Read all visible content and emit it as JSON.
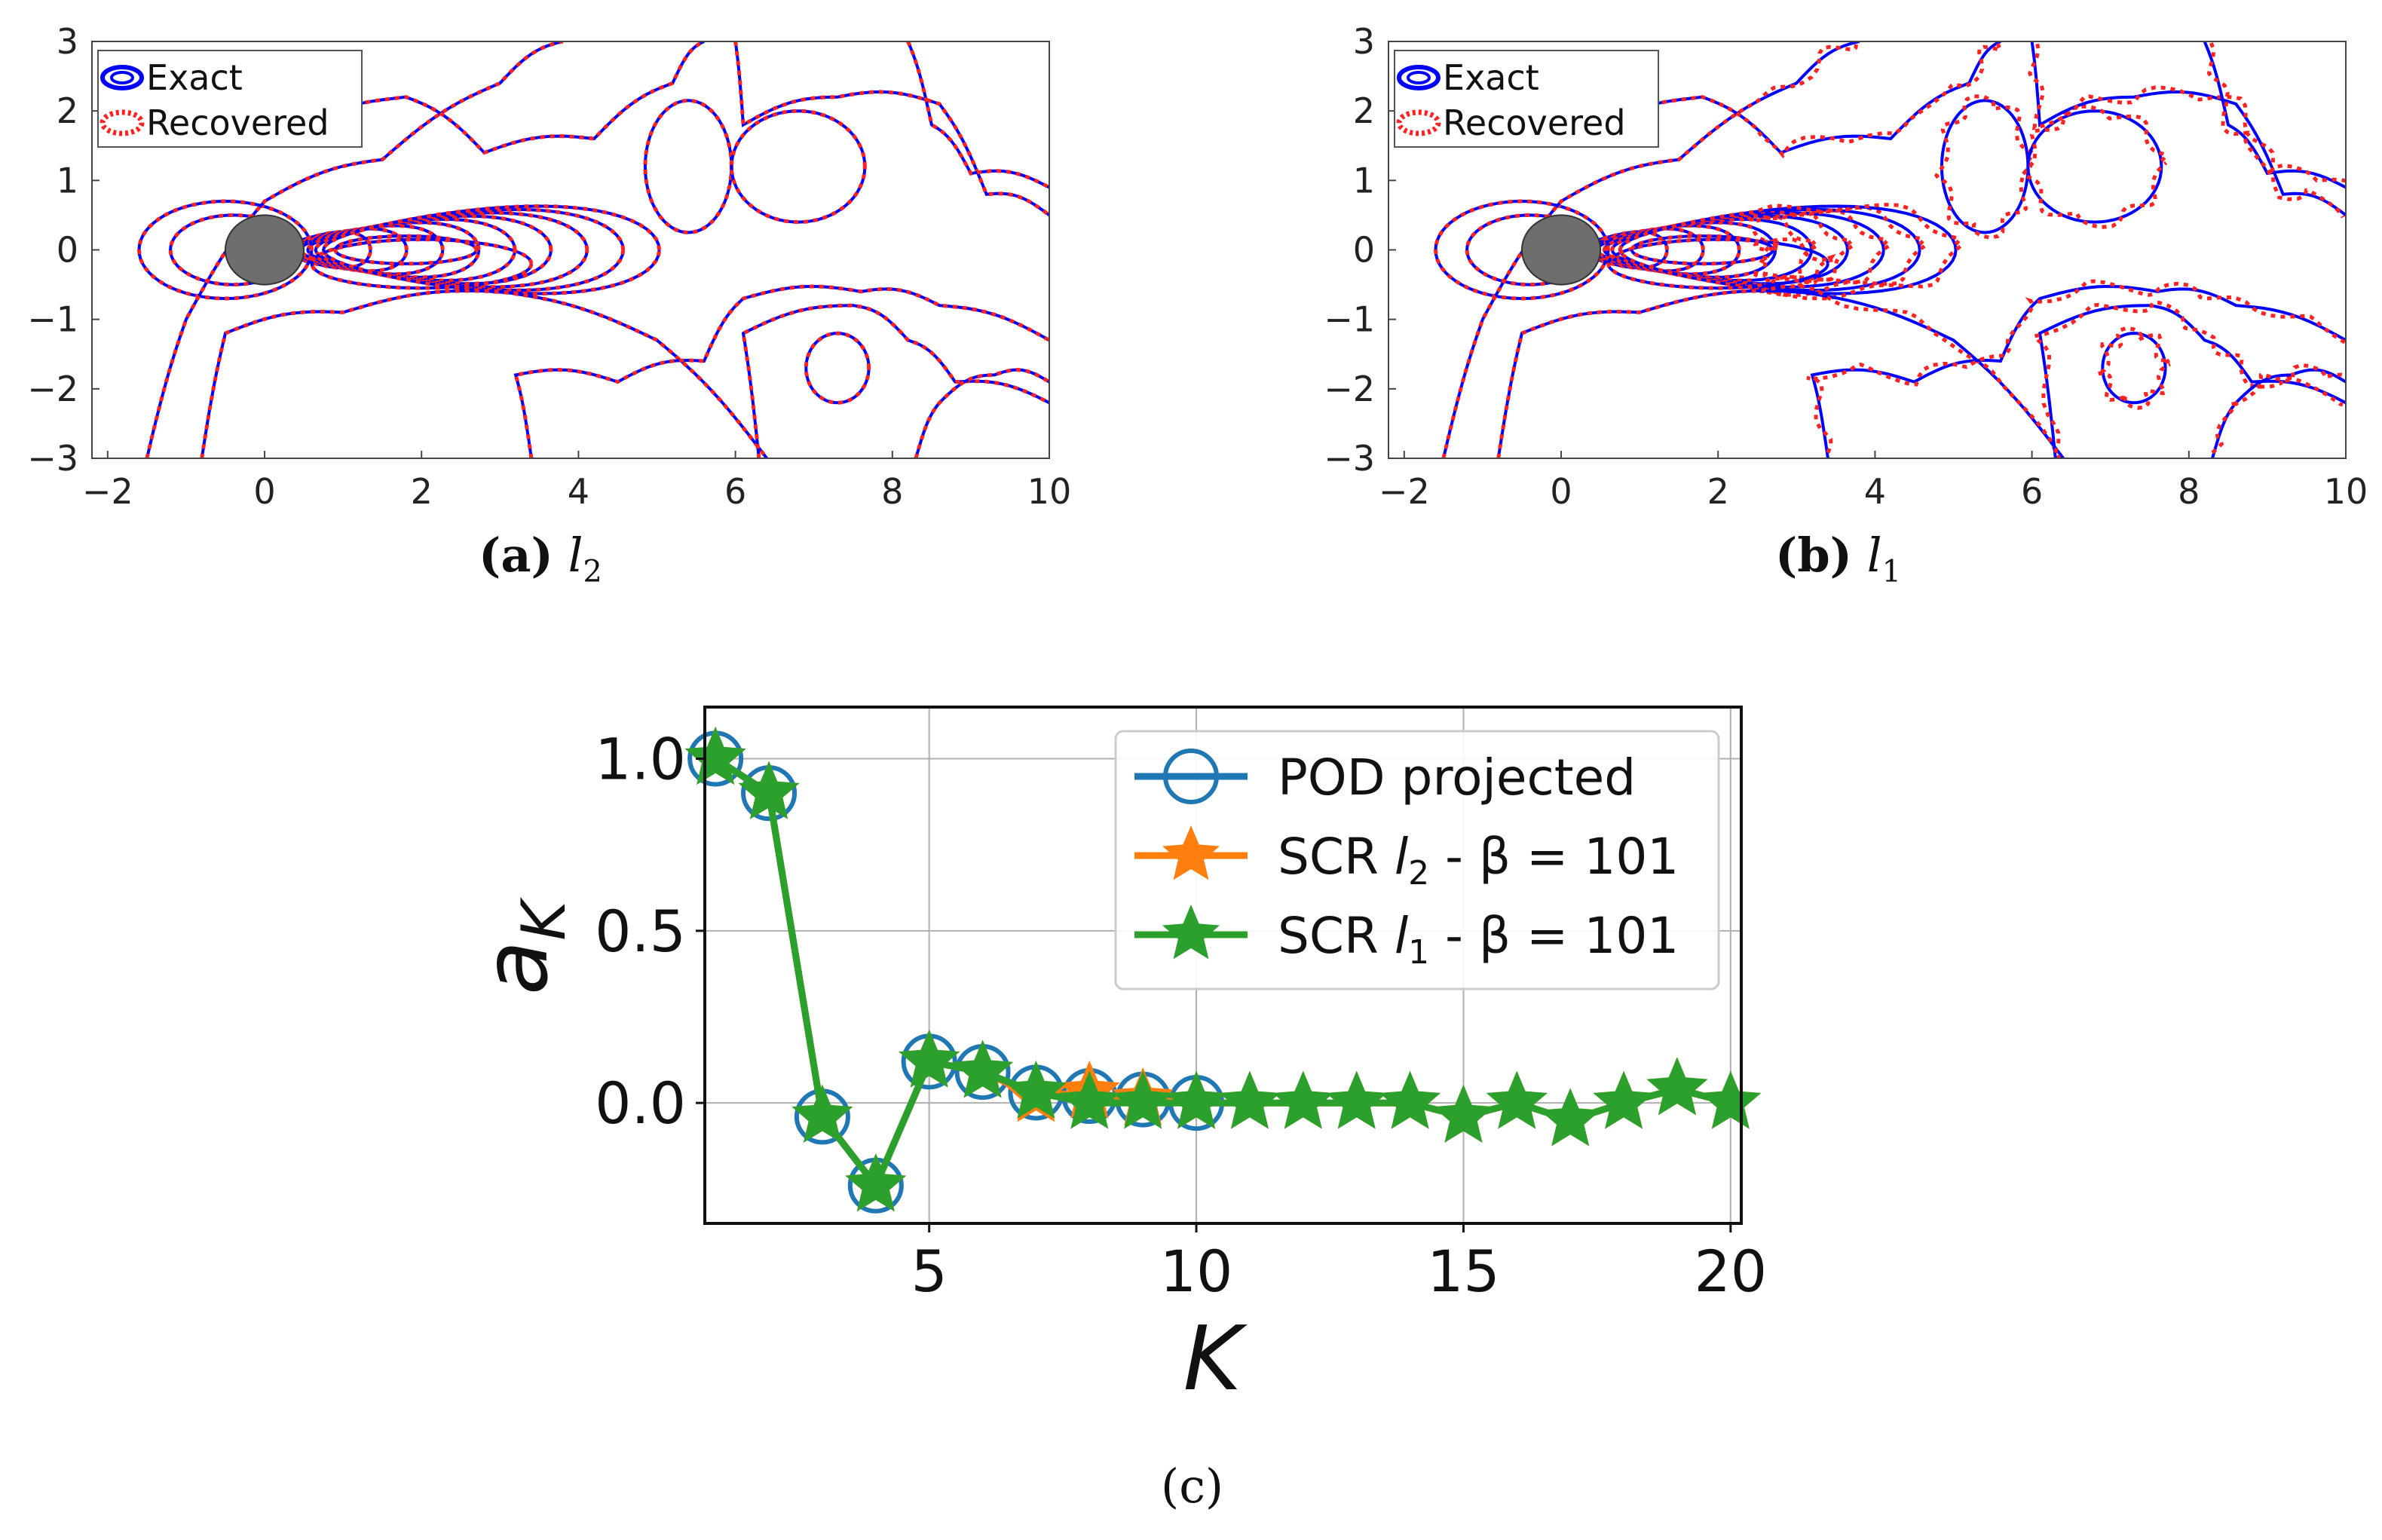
{
  "chart_data": [
    {
      "type": "contour",
      "panel_label": "(a)",
      "caption_symbol": "l",
      "caption_subscript": "2",
      "x_ticks": [
        -2,
        0,
        2,
        4,
        6,
        8,
        10
      ],
      "y_ticks": [
        3,
        2,
        1,
        0,
        -1,
        -2,
        -3
      ],
      "xlim": [
        -2.2,
        10
      ],
      "ylim": [
        -3,
        3
      ],
      "legend": [
        {
          "label": "Exact",
          "color": "#0000ff",
          "style": "solid"
        },
        {
          "label": "Recovered",
          "color": "#ff2222",
          "style": "dotted"
        }
      ],
      "obstacle": {
        "shape": "cylinder",
        "center": [
          0,
          0
        ],
        "radius": 0.5,
        "color": "#6e6e6e"
      },
      "mismatch": false
    },
    {
      "type": "contour",
      "panel_label": "(b)",
      "caption_symbol": "l",
      "caption_subscript": "1",
      "x_ticks": [
        -2,
        0,
        2,
        4,
        6,
        8,
        10
      ],
      "y_ticks": [
        3,
        2,
        1,
        0,
        -1,
        -2,
        -3
      ],
      "xlim": [
        -2.2,
        10
      ],
      "ylim": [
        -3,
        3
      ],
      "legend": [
        {
          "label": "Exact",
          "color": "#0000ff",
          "style": "solid"
        },
        {
          "label": "Recovered",
          "color": "#ff2222",
          "style": "dotted"
        }
      ],
      "obstacle": {
        "shape": "cylinder",
        "center": [
          0,
          0
        ],
        "radius": 0.5,
        "color": "#6e6e6e"
      },
      "mismatch": true
    },
    {
      "type": "line",
      "panel_label": "(c)",
      "xlabel": "K",
      "ylabel": "a_K",
      "xlim": [
        0.8,
        20.2
      ],
      "ylim": [
        -0.35,
        1.15
      ],
      "x_ticks": [
        5,
        10,
        15,
        20
      ],
      "y_ticks": [
        1.0,
        0.5,
        0.0
      ],
      "x_tick_labels": [
        "5",
        "10",
        "15",
        "20"
      ],
      "y_tick_labels": [
        "1.0",
        "0.5",
        "0.0"
      ],
      "grid": true,
      "legend_position": "top-right",
      "series": [
        {
          "name": "POD projected",
          "marker": "circle",
          "color": "#1f77b4",
          "x": [
            1,
            2,
            3,
            4,
            5,
            6,
            7,
            8,
            9,
            10
          ],
          "y": [
            1.0,
            0.9,
            -0.04,
            -0.24,
            0.12,
            0.09,
            0.03,
            0.02,
            0.01,
            0.0
          ]
        },
        {
          "name": "SCR l2 - β = 101",
          "label_prefix": "SCR ",
          "label_symbol": "l",
          "label_subscript": "2",
          "label_suffix": " - β = 101",
          "marker": "star",
          "color": "#ff7f0e",
          "x": [
            1,
            2,
            3,
            4,
            5,
            6,
            7,
            8,
            9,
            10,
            11,
            12,
            13,
            14,
            15,
            16,
            17,
            18,
            19,
            20
          ],
          "y": [
            1.0,
            0.9,
            -0.04,
            -0.24,
            0.12,
            0.09,
            0.02,
            0.03,
            0.01,
            0.0,
            0.0,
            0.0,
            0.0,
            0.0,
            -0.04,
            0.0,
            -0.05,
            0.0,
            0.04,
            0.0
          ]
        },
        {
          "name": "SCR l1 - β = 101",
          "label_prefix": "SCR ",
          "label_symbol": "l",
          "label_subscript": "1",
          "label_suffix": " - β = 101",
          "marker": "star",
          "color": "#2ca02c",
          "x": [
            1,
            2,
            3,
            4,
            5,
            6,
            7,
            8,
            9,
            10,
            11,
            12,
            13,
            14,
            15,
            16,
            17,
            18,
            19,
            20
          ],
          "y": [
            1.0,
            0.9,
            -0.04,
            -0.24,
            0.12,
            0.09,
            0.03,
            0.0,
            0.0,
            0.0,
            0.0,
            0.0,
            0.0,
            0.0,
            -0.04,
            0.0,
            -0.05,
            0.0,
            0.04,
            0.0
          ]
        }
      ]
    }
  ]
}
